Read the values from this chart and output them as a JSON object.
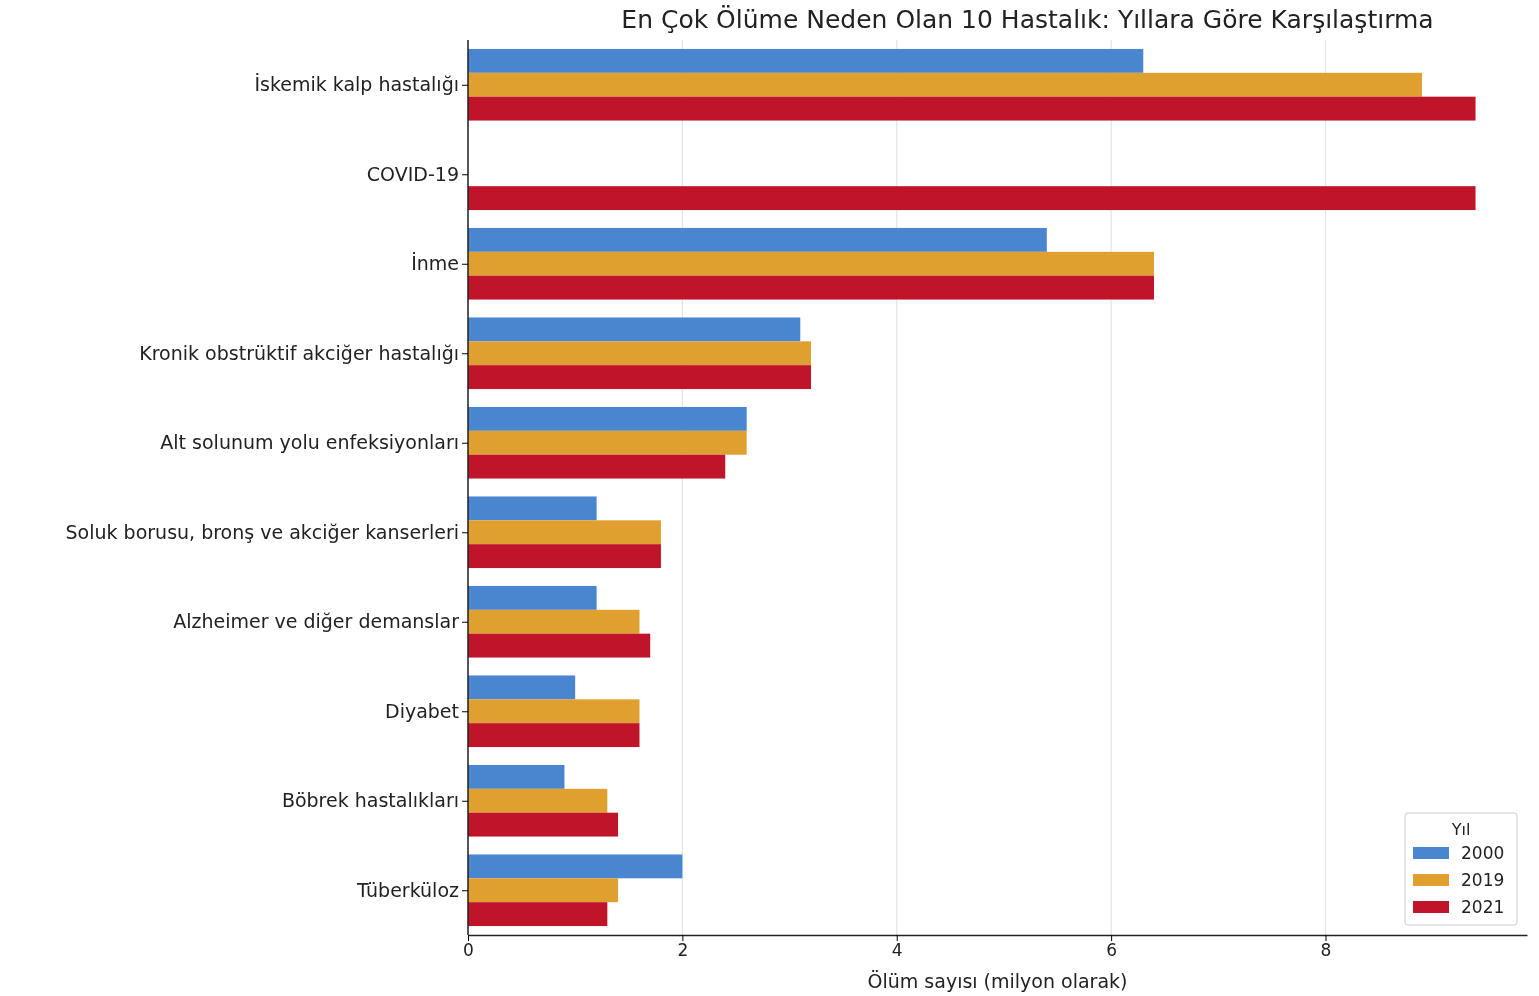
{
  "chart_data": {
    "type": "bar",
    "orientation": "horizontal",
    "title": "En Çok Ölüme Neden Olan 10 Hastalık: Yıllara Göre Karşılaştırma",
    "xlabel": "Ölüm sayısı (milyon olarak)",
    "legend_title": "Yıl",
    "categories": [
      "İskemik kalp hastalığı",
      "COVID-19",
      "İnme",
      "Kronik obstrüktif akciğer hastalığı",
      "Alt solunum yolu enfeksiyonları",
      "Soluk borusu, bronş ve akciğer kanserleri",
      "Alzheimer ve diğer demanslar",
      "Diyabet",
      "Böbrek hastalıkları",
      "Tüberküloz"
    ],
    "series": [
      {
        "name": "2000",
        "color": "#4a86d0",
        "values": [
          6.3,
          null,
          5.4,
          3.1,
          2.6,
          1.2,
          1.2,
          1.0,
          0.9,
          2.0
        ]
      },
      {
        "name": "2019",
        "color": "#e0a030",
        "values": [
          8.9,
          null,
          6.4,
          3.2,
          2.6,
          1.8,
          1.6,
          1.6,
          1.3,
          1.4
        ]
      },
      {
        "name": "2021",
        "color": "#c0142a",
        "values": [
          9.4,
          9.4,
          6.4,
          3.2,
          2.4,
          1.8,
          1.7,
          1.6,
          1.4,
          1.3
        ]
      }
    ],
    "xlim": [
      0,
      9.88
    ],
    "xticks": [
      0,
      2,
      4,
      6,
      8
    ],
    "grid": "x",
    "legend": "bottom right"
  }
}
